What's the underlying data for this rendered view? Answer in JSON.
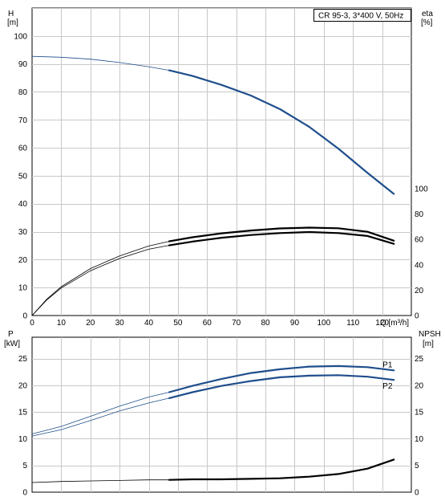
{
  "chart_data": [
    {
      "type": "line",
      "title": "CR 95-3, 3*400 V, 50Hz",
      "x_axis": {
        "label": "Q [m³/h]",
        "ticks": [
          0,
          10,
          20,
          30,
          40,
          50,
          60,
          70,
          80,
          90,
          100,
          110,
          120
        ],
        "range": [
          0,
          130
        ]
      },
      "y_left": {
        "label": [
          "H",
          "[m]"
        ],
        "ticks": [
          0,
          10,
          20,
          30,
          40,
          50,
          60,
          70,
          80,
          90,
          100
        ],
        "range": [
          0,
          110
        ]
      },
      "y_right": {
        "label": [
          "eta",
          "[%]"
        ],
        "ticks": [
          0,
          20,
          40,
          60,
          80,
          100
        ],
        "range": [
          0,
          100
        ]
      },
      "grid": true,
      "series": [
        {
          "axis": "left",
          "color": "#1f4e8c",
          "points_thin": [
            [
              0,
              92.7
            ],
            [
              10,
              92.4
            ],
            [
              20,
              91.7
            ],
            [
              30,
              90.5
            ],
            [
              40,
              89.0
            ],
            [
              47,
              87.7
            ]
          ],
          "points_thick": [
            [
              47,
              87.7
            ],
            [
              55,
              85.7
            ],
            [
              65,
              82.5
            ],
            [
              75,
              78.7
            ],
            [
              85,
              73.8
            ],
            [
              95,
              67.5
            ],
            [
              105,
              59.7
            ],
            [
              115,
              51.0
            ],
            [
              124,
              43.5
            ]
          ]
        },
        {
          "axis": "right",
          "color": "#000000",
          "points_thin": [
            [
              0,
              0
            ],
            [
              5,
              12.8
            ],
            [
              10,
              22.7
            ],
            [
              20,
              37.0
            ],
            [
              30,
              47.0
            ],
            [
              40,
              54.8
            ],
            [
              47,
              58.5
            ]
          ],
          "points_thick": [
            [
              47,
              58.5
            ],
            [
              55,
              61.7
            ],
            [
              65,
              64.8
            ],
            [
              75,
              67.0
            ],
            [
              85,
              68.7
            ],
            [
              95,
              69.3
            ],
            [
              105,
              68.8
            ],
            [
              115,
              66.0
            ],
            [
              124,
              59.0
            ]
          ]
        },
        {
          "axis": "right",
          "color": "#000000",
          "points_thin": [
            [
              0,
              0
            ],
            [
              5,
              12.2
            ],
            [
              10,
              21.7
            ],
            [
              20,
              35.3
            ],
            [
              30,
              45.0
            ],
            [
              40,
              52.3
            ],
            [
              47,
              55.3
            ]
          ],
          "points_thick": [
            [
              47,
              55.3
            ],
            [
              55,
              58.3
            ],
            [
              65,
              61.3
            ],
            [
              75,
              63.5
            ],
            [
              85,
              65.0
            ],
            [
              95,
              65.8
            ],
            [
              105,
              65.0
            ],
            [
              115,
              62.7
            ],
            [
              124,
              56.5
            ]
          ]
        }
      ]
    },
    {
      "type": "line",
      "x_axis": {
        "range": [
          0,
          130
        ]
      },
      "y_left": {
        "label": [
          "P",
          "[kW]"
        ],
        "ticks": [
          0,
          5,
          10,
          15,
          20,
          25
        ],
        "range": [
          0,
          29
        ]
      },
      "y_right": {
        "label": [
          "NPSH",
          "[m]"
        ],
        "ticks": [
          0,
          5,
          10,
          15,
          20,
          25
        ],
        "range": [
          0,
          29
        ]
      },
      "grid": true,
      "series": [
        {
          "name": "P1",
          "axis": "left",
          "color": "#1f4e8c",
          "points_thin": [
            [
              0,
              10.9
            ],
            [
              10,
              12.3
            ],
            [
              20,
              14.2
            ],
            [
              30,
              16.1
            ],
            [
              40,
              17.8
            ],
            [
              47,
              18.7
            ]
          ],
          "points_thick": [
            [
              47,
              18.7
            ],
            [
              55,
              19.9
            ],
            [
              65,
              21.2
            ],
            [
              75,
              22.3
            ],
            [
              85,
              23.0
            ],
            [
              95,
              23.5
            ],
            [
              105,
              23.6
            ],
            [
              115,
              23.4
            ],
            [
              124,
              22.8
            ]
          ]
        },
        {
          "name": "P2",
          "axis": "left",
          "color": "#1f4e8c",
          "points_thin": [
            [
              0,
              10.5
            ],
            [
              10,
              11.7
            ],
            [
              20,
              13.4
            ],
            [
              30,
              15.2
            ],
            [
              40,
              16.7
            ],
            [
              47,
              17.6
            ]
          ],
          "points_thick": [
            [
              47,
              17.6
            ],
            [
              55,
              18.7
            ],
            [
              65,
              19.9
            ],
            [
              75,
              20.8
            ],
            [
              85,
              21.5
            ],
            [
              95,
              21.8
            ],
            [
              105,
              21.9
            ],
            [
              115,
              21.6
            ],
            [
              124,
              21.0
            ]
          ]
        },
        {
          "axis": "right",
          "color": "#000000",
          "points_thin": [
            [
              0,
              1.8
            ],
            [
              10,
              2.0
            ],
            [
              20,
              2.1
            ],
            [
              30,
              2.2
            ],
            [
              40,
              2.3
            ],
            [
              47,
              2.3
            ]
          ],
          "points_thick": [
            [
              47,
              2.3
            ],
            [
              55,
              2.4
            ],
            [
              65,
              2.4
            ],
            [
              75,
              2.5
            ],
            [
              85,
              2.6
            ],
            [
              95,
              2.9
            ],
            [
              105,
              3.4
            ],
            [
              115,
              4.4
            ],
            [
              124,
              6.1
            ]
          ]
        }
      ]
    }
  ]
}
